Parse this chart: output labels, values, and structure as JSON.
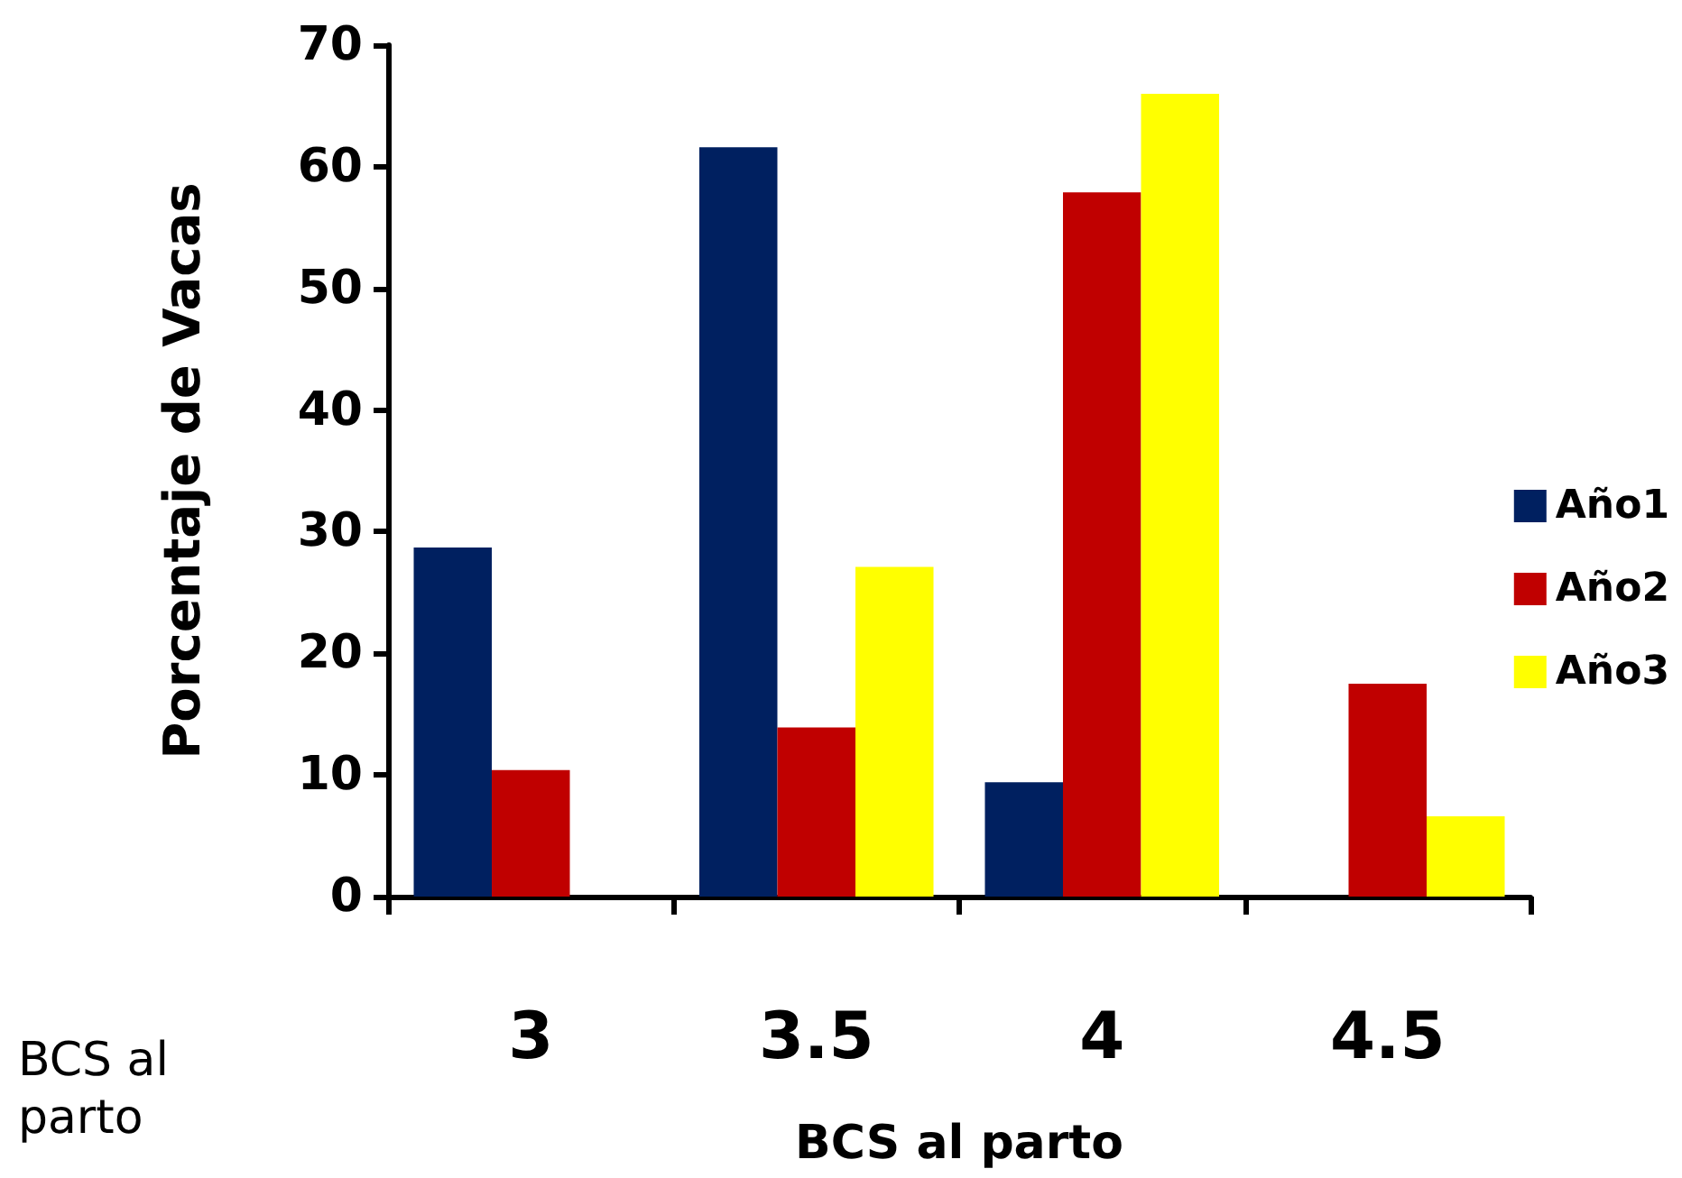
{
  "chart_data": {
    "type": "bar",
    "xlabel": "BCS al parto",
    "ylabel": "Porcentaje de Vacas",
    "categories": [
      "3",
      "3.5",
      "4",
      "4.5"
    ],
    "series": [
      {
        "name": "Año1",
        "color": "#002060",
        "values": [
          28.7,
          61.6,
          9.4,
          null
        ]
      },
      {
        "name": "Año2",
        "color": "#c00000",
        "values": [
          10.4,
          13.9,
          57.9,
          17.5
        ]
      },
      {
        "name": "Año3",
        "color": "#ffff00",
        "values": [
          null,
          27.1,
          66,
          6.6
        ]
      }
    ],
    "ylim": [
      0,
      70
    ],
    "yticks": [
      0,
      10,
      20,
      30,
      40,
      50,
      60,
      70
    ],
    "grid": false,
    "legend": "right",
    "annotations": [
      "BCS al parto"
    ]
  }
}
